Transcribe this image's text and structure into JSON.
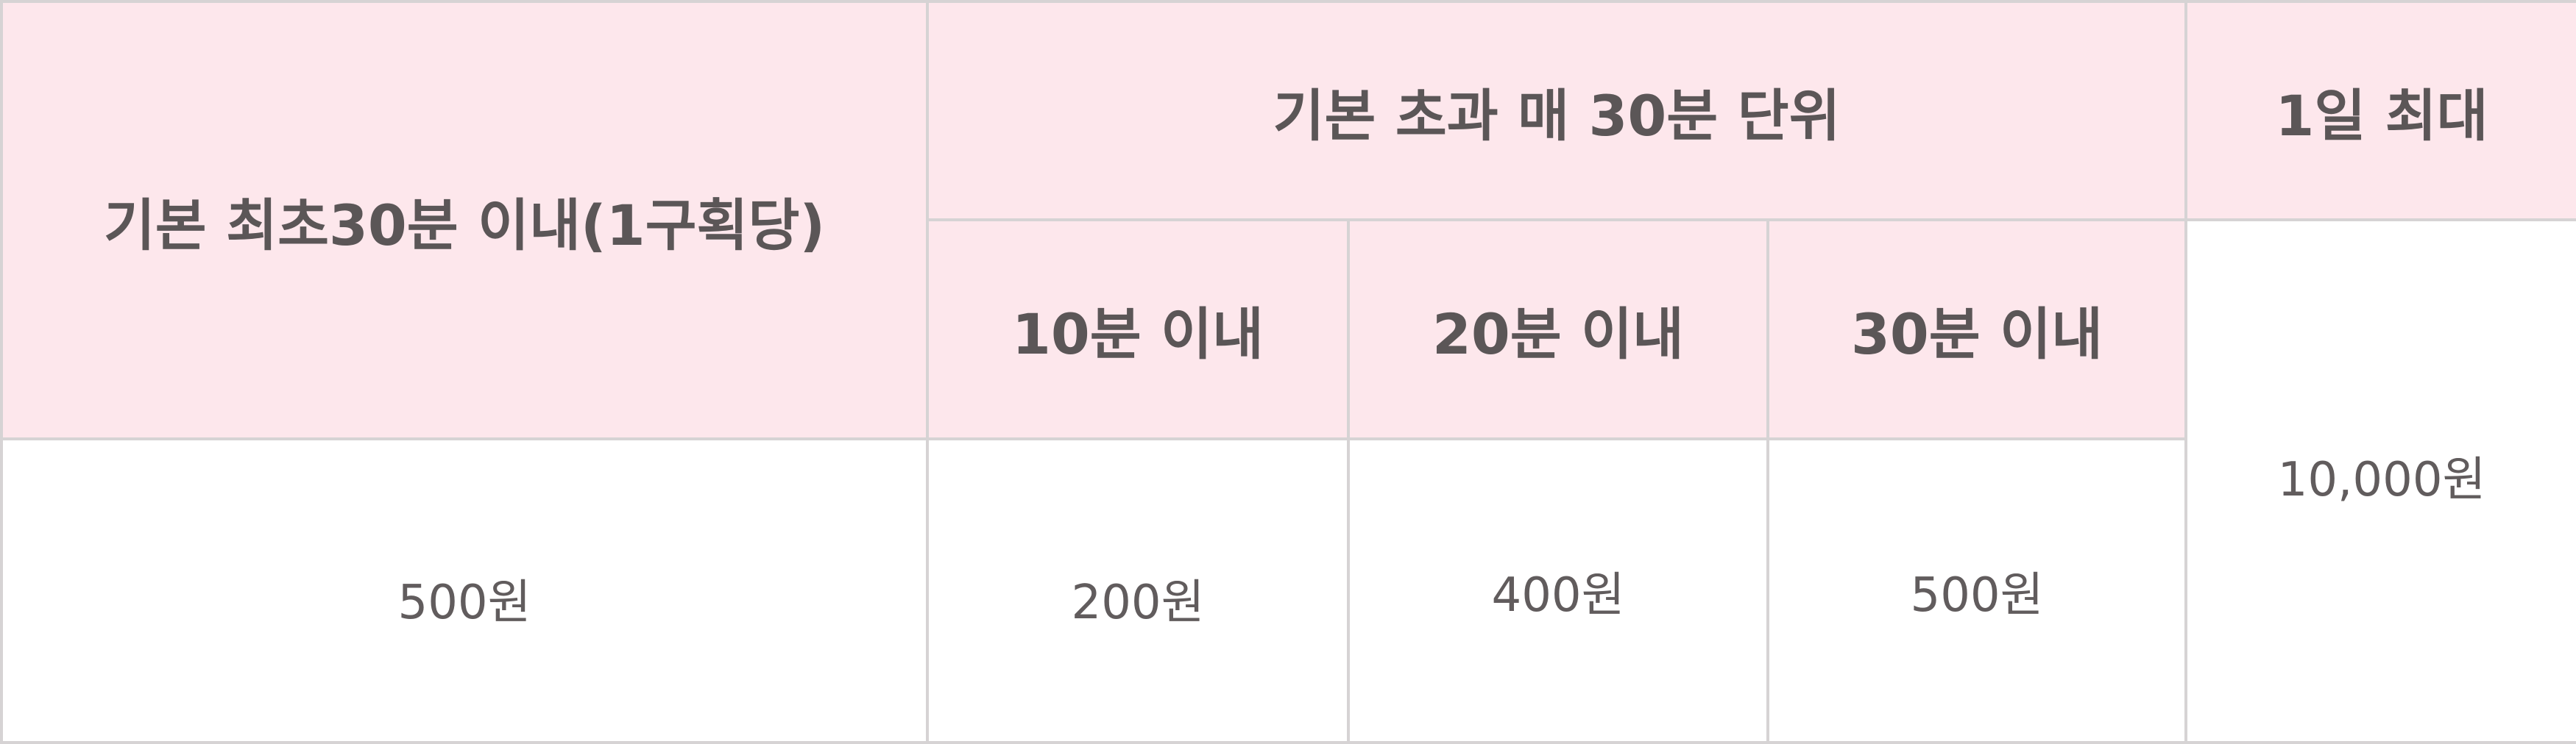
{
  "fee_table": {
    "headers": {
      "base": "기본 최초30분 이내(1구획당)",
      "extra_group": "기본 초과 매 30분 단위",
      "daily_max": "1일 최대",
      "sub": [
        "10분 이내",
        "20분 이내",
        "30분 이내"
      ]
    },
    "values": {
      "base": "500원",
      "extra": [
        "200원",
        "400원",
        "500원"
      ],
      "daily_max": "10,000원"
    },
    "colors": {
      "header_bg": "#fde7ec",
      "body_bg": "#ffffff",
      "border": "#d6d3d4",
      "text": "#5b5657"
    }
  }
}
